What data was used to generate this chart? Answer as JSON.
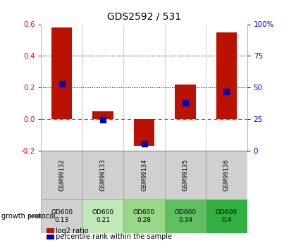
{
  "title": "GDS2592 / 531",
  "samples": [
    "GSM99132",
    "GSM99133",
    "GSM99134",
    "GSM99135",
    "GSM99136"
  ],
  "log2_ratio": [
    0.58,
    0.05,
    -0.17,
    0.22,
    0.55
  ],
  "percentile_rank": [
    0.53,
    0.245,
    0.055,
    0.38,
    0.465
  ],
  "left_ylim": [
    -0.2,
    0.6
  ],
  "right_ylim": [
    0,
    1.0
  ],
  "left_yticks": [
    -0.2,
    0.0,
    0.2,
    0.4,
    0.6
  ],
  "right_yticks": [
    0,
    0.25,
    0.5,
    0.75,
    1.0
  ],
  "right_yticklabels": [
    "0",
    "25",
    "50",
    "75",
    "100%"
  ],
  "bar_color": "#bb1100",
  "dot_color": "#0000bb",
  "zero_line_color": "#cc3300",
  "protocol_labels": [
    "OD600\n0.13",
    "OD600\n0.21",
    "OD600\n0.28",
    "OD600\n0.34",
    "OD600\n0.4"
  ],
  "sample_bg_color": "#d0d0d0",
  "protocol_colors": [
    "#d0d0d0",
    "#c0e8b8",
    "#98d888",
    "#60c060",
    "#30b040"
  ],
  "growth_protocol_text": "growth protocol",
  "legend_red": "log2 ratio",
  "legend_blue": "percentile rank within the sample"
}
